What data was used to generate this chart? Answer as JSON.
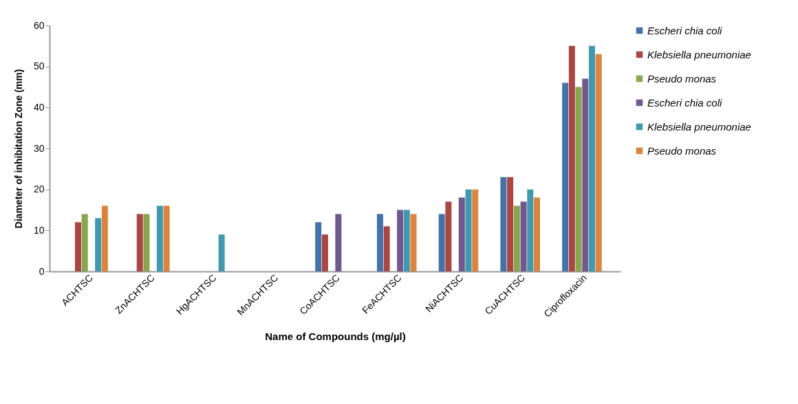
{
  "chart_data": {
    "type": "bar",
    "xlabel": "Name of Compounds  (mg/µl)",
    "ylabel": "Diameter of inhibitation  Zone  (mm)",
    "categories": [
      "ACHTSC",
      "ZnACHTSC",
      "HgACHTSC",
      "MnACHTSC",
      "CoACHTSC",
      "FeACHTSC",
      "NiACHTSC",
      "CuACHTSC",
      "Ciprofloxacin"
    ],
    "series": [
      {
        "name": "Escheri chia coli",
        "color": "#4572a7",
        "values": [
          0,
          0,
          0,
          0,
          12,
          14,
          14,
          23,
          46
        ]
      },
      {
        "name": "Klebsiella pneumoniae",
        "color": "#aa4643",
        "values": [
          12,
          14,
          0,
          0,
          9,
          11,
          17,
          23,
          55
        ]
      },
      {
        "name": "Pseudo monas",
        "color": "#89a54e",
        "values": [
          14,
          14,
          0,
          0,
          0,
          0,
          0,
          16,
          45
        ]
      },
      {
        "name": "Escheri chia coli",
        "color": "#71588f",
        "values": [
          0,
          0,
          0,
          0,
          14,
          15,
          18,
          17,
          47
        ]
      },
      {
        "name": "Klebsiella pneumoniae",
        "color": "#4198af",
        "values": [
          13,
          16,
          9,
          0,
          0,
          15,
          20,
          20,
          55
        ]
      },
      {
        "name": "Pseudo monas",
        "color": "#db843d",
        "values": [
          16,
          16,
          0,
          0,
          0,
          14,
          20,
          18,
          53
        ]
      }
    ],
    "ylim": [
      0,
      60
    ],
    "yticks": [
      0,
      10,
      20,
      30,
      40,
      50,
      60
    ],
    "grid": false,
    "legend": "right"
  }
}
